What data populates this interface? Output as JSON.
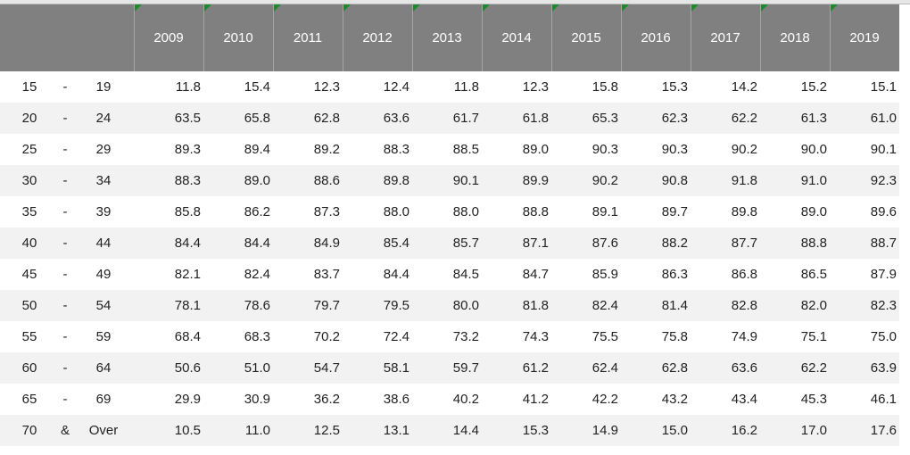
{
  "table": {
    "header": [
      "2009",
      "2010",
      "2011",
      "2012",
      "2013",
      "2014",
      "2015",
      "2016",
      "2017",
      "2018",
      "2019"
    ],
    "rows": [
      [
        "15",
        "-",
        "19",
        "11.8",
        "15.4",
        "12.3",
        "12.4",
        "11.8",
        "12.3",
        "15.8",
        "15.3",
        "14.2",
        "15.2",
        "15.1"
      ],
      [
        "20",
        "-",
        "24",
        "63.5",
        "65.8",
        "62.8",
        "63.6",
        "61.7",
        "61.8",
        "65.3",
        "62.3",
        "62.2",
        "61.3",
        "61.0"
      ],
      [
        "25",
        "-",
        "29",
        "89.3",
        "89.4",
        "89.2",
        "88.3",
        "88.5",
        "89.0",
        "90.3",
        "90.3",
        "90.2",
        "90.0",
        "90.1"
      ],
      [
        "30",
        "-",
        "34",
        "88.3",
        "89.0",
        "88.6",
        "89.8",
        "90.1",
        "89.9",
        "90.2",
        "90.8",
        "91.8",
        "91.0",
        "92.3"
      ],
      [
        "35",
        "-",
        "39",
        "85.8",
        "86.2",
        "87.3",
        "88.0",
        "88.0",
        "88.8",
        "89.1",
        "89.7",
        "89.8",
        "89.0",
        "89.6"
      ],
      [
        "40",
        "-",
        "44",
        "84.4",
        "84.4",
        "84.9",
        "85.4",
        "85.7",
        "87.1",
        "87.6",
        "88.2",
        "87.7",
        "88.8",
        "88.7"
      ],
      [
        "45",
        "-",
        "49",
        "82.1",
        "82.4",
        "83.7",
        "84.4",
        "84.5",
        "84.7",
        "85.9",
        "86.3",
        "86.8",
        "86.5",
        "87.9"
      ],
      [
        "50",
        "-",
        "54",
        "78.1",
        "78.6",
        "79.7",
        "79.5",
        "80.0",
        "81.8",
        "82.4",
        "81.4",
        "82.8",
        "82.0",
        "82.3"
      ],
      [
        "55",
        "-",
        "59",
        "68.4",
        "68.3",
        "70.2",
        "72.4",
        "73.2",
        "74.3",
        "75.5",
        "75.8",
        "74.9",
        "75.1",
        "75.0"
      ],
      [
        "60",
        "-",
        "64",
        "50.6",
        "51.0",
        "54.7",
        "58.1",
        "59.7",
        "61.2",
        "62.4",
        "62.8",
        "63.6",
        "62.2",
        "63.9"
      ],
      [
        "65",
        "-",
        "69",
        "29.9",
        "30.9",
        "36.2",
        "38.6",
        "40.2",
        "41.2",
        "42.2",
        "43.2",
        "43.4",
        "45.3",
        "46.1"
      ],
      [
        "70",
        "&",
        "Over",
        "10.5",
        "11.0",
        "12.5",
        "13.1",
        "14.4",
        "15.3",
        "14.9",
        "15.0",
        "16.2",
        "17.0",
        "17.6"
      ]
    ]
  }
}
